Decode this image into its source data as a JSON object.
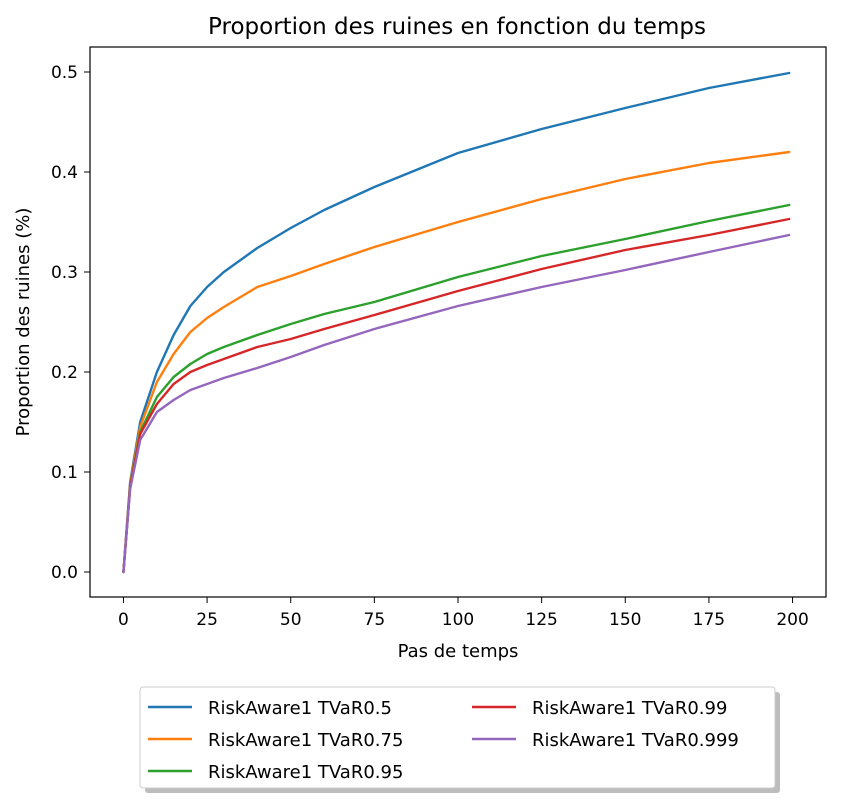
{
  "chart_data": {
    "type": "line",
    "title": "Proportion des ruines en fonction du temps",
    "xlabel": "Pas de temps",
    "ylabel": "Proportion des ruines (%)",
    "xlim": [
      -10,
      210
    ],
    "ylim": [
      -0.025,
      0.525
    ],
    "xticks": [
      0,
      25,
      50,
      75,
      100,
      125,
      150,
      175,
      200
    ],
    "yticks": [
      0.0,
      0.1,
      0.2,
      0.3,
      0.4,
      0.5
    ],
    "xtick_labels": [
      "0",
      "25",
      "50",
      "75",
      "100",
      "125",
      "150",
      "175",
      "200"
    ],
    "ytick_labels": [
      "0.0",
      "0.1",
      "0.2",
      "0.3",
      "0.4",
      "0.5"
    ],
    "grid": false,
    "legend_position": "below plot, centered, two columns",
    "x": [
      0,
      2,
      5,
      10,
      15,
      20,
      25,
      30,
      40,
      50,
      60,
      75,
      100,
      125,
      150,
      175,
      199
    ],
    "series": [
      {
        "name": "RiskAware1 TVaR0.5",
        "color": "#1f77b4",
        "values": [
          0.0,
          0.09,
          0.15,
          0.2,
          0.237,
          0.266,
          0.285,
          0.3,
          0.324,
          0.344,
          0.362,
          0.385,
          0.419,
          0.443,
          0.464,
          0.484,
          0.499
        ]
      },
      {
        "name": "RiskAware1 TVaR0.75",
        "color": "#ff7f0e",
        "values": [
          0.0,
          0.088,
          0.145,
          0.19,
          0.218,
          0.24,
          0.254,
          0.265,
          0.285,
          0.296,
          0.308,
          0.325,
          0.35,
          0.373,
          0.393,
          0.409,
          0.42
        ]
      },
      {
        "name": "RiskAware1 TVaR0.95",
        "color": "#2ca02c",
        "values": [
          0.0,
          0.086,
          0.14,
          0.175,
          0.195,
          0.208,
          0.218,
          0.225,
          0.237,
          0.248,
          0.258,
          0.27,
          0.295,
          0.316,
          0.333,
          0.351,
          0.367
        ]
      },
      {
        "name": "RiskAware1 TVaR0.99",
        "color": "#d62728",
        "values": [
          0.0,
          0.085,
          0.138,
          0.168,
          0.188,
          0.2,
          0.207,
          0.213,
          0.225,
          0.233,
          0.243,
          0.257,
          0.281,
          0.303,
          0.322,
          0.337,
          0.353
        ]
      },
      {
        "name": "RiskAware1 TVaR0.999",
        "color": "#9467bd",
        "values": [
          0.0,
          0.083,
          0.132,
          0.16,
          0.172,
          0.182,
          0.188,
          0.194,
          0.204,
          0.215,
          0.227,
          0.243,
          0.266,
          0.285,
          0.302,
          0.32,
          0.337
        ]
      }
    ]
  }
}
